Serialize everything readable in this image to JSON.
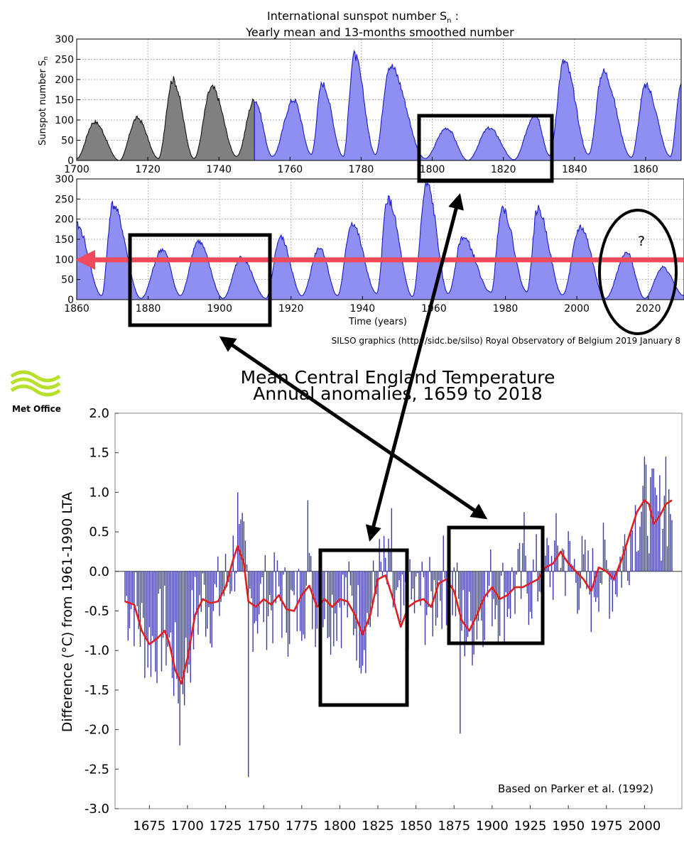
{
  "sunspot": {
    "title_line1": "International sunspot number S",
    "title_sub": "n",
    "title_colon": ":",
    "title_line2": "Yearly mean and 13-months smoothed number",
    "ylabel": "Sunspot number S",
    "ylabel_sub": "n",
    "xlabel": "Time (years)",
    "credit": "SILSO graphics (http://sidc.be/silso)  Royal Observatory of Belgium  2019 January 8",
    "question": "?",
    "fill_color": "#8f8ff2",
    "line_color": "#1a1ac8",
    "early_fill": "#808080"
  },
  "cet": {
    "title_line1": "Mean Central England Temperature",
    "title_line2": "Annual anomalies, 1659 to 2018",
    "ylabel": "Difference (°C) from 1961-1990 LTA",
    "citation": "Based on Parker et al. (1992)",
    "logo_text": "Met Office",
    "bar_color": "#3a3aa6",
    "smooth_color": "#e02020"
  },
  "overlay": {
    "arrow_color": "#000000",
    "red_arrow_color": "#f04a5a"
  },
  "chart_data": [
    {
      "type": "area",
      "title": "International sunspot number Sn : Yearly mean and 13-months smoothed number",
      "panel": "top",
      "xlim": [
        1700,
        1870
      ],
      "ylim": [
        0,
        300
      ],
      "ylabel": "Sunspot number Sn",
      "xticks": [
        1700,
        1720,
        1740,
        1760,
        1780,
        1800,
        1820,
        1840,
        1860
      ],
      "yticks": [
        0,
        50,
        100,
        150,
        200,
        250,
        300
      ],
      "peaks": [
        [
          1705,
          95
        ],
        [
          1717,
          105
        ],
        [
          1727,
          200
        ],
        [
          1738,
          180
        ],
        [
          1750,
          150
        ],
        [
          1761,
          150
        ],
        [
          1769,
          190
        ],
        [
          1778,
          260
        ],
        [
          1788,
          235
        ],
        [
          1804,
          80
        ],
        [
          1816,
          80
        ],
        [
          1829,
          115
        ],
        [
          1837,
          245
        ],
        [
          1848,
          220
        ],
        [
          1860,
          185
        ],
        [
          1870,
          190
        ]
      ],
      "minima": [
        [
          1700,
          5
        ],
        [
          1712,
          0
        ],
        [
          1723,
          5
        ],
        [
          1733,
          5
        ],
        [
          1745,
          10
        ],
        [
          1755,
          10
        ],
        [
          1766,
          15
        ],
        [
          1775,
          10
        ],
        [
          1784,
          15
        ],
        [
          1798,
          5
        ],
        [
          1810,
          0
        ],
        [
          1823,
          2
        ],
        [
          1833,
          12
        ],
        [
          1844,
          15
        ],
        [
          1856,
          8
        ],
        [
          1867,
          10
        ]
      ]
    },
    {
      "type": "area",
      "panel": "bottom",
      "xlim": [
        1860,
        2030
      ],
      "ylim": [
        0,
        300
      ],
      "xlabel": "Time (years)",
      "xticks": [
        1860,
        1880,
        1900,
        1920,
        1940,
        1960,
        1980,
        2000,
        2020
      ],
      "yticks": [
        0,
        50,
        100,
        150,
        200,
        250,
        300
      ],
      "peaks": [
        [
          1860,
          185
        ],
        [
          1870,
          235
        ],
        [
          1884,
          125
        ],
        [
          1894,
          145
        ],
        [
          1906,
          105
        ],
        [
          1917,
          155
        ],
        [
          1928,
          130
        ],
        [
          1937,
          190
        ],
        [
          1947,
          250
        ],
        [
          1958,
          285
        ],
        [
          1968,
          155
        ],
        [
          1979,
          230
        ],
        [
          1989,
          225
        ],
        [
          2001,
          180
        ],
        [
          2014,
          115
        ],
        [
          2024,
          80
        ]
      ],
      "minima": [
        [
          1867,
          10
        ],
        [
          1878,
          3
        ],
        [
          1889,
          10
        ],
        [
          1901,
          3
        ],
        [
          1913,
          3
        ],
        [
          1923,
          10
        ],
        [
          1933,
          10
        ],
        [
          1944,
          15
        ],
        [
          1954,
          8
        ],
        [
          1964,
          15
        ],
        [
          1976,
          18
        ],
        [
          1986,
          20
        ],
        [
          1996,
          12
        ],
        [
          2008,
          3
        ],
        [
          2019,
          3
        ],
        [
          2030,
          10
        ]
      ]
    },
    {
      "type": "bar",
      "title": "Mean Central England Temperature Annual anomalies, 1659 to 2018",
      "xlim": [
        1659,
        2018
      ],
      "ylim": [
        -3.0,
        2.0
      ],
      "ylabel": "Difference (°C) from 1961-1990 LTA",
      "xticks": [
        1675,
        1700,
        1725,
        1750,
        1775,
        1800,
        1825,
        1850,
        1875,
        1900,
        1925,
        1950,
        1975,
        2000
      ],
      "yticks": [
        -3.0,
        -2.5,
        -2.0,
        -1.5,
        -1.0,
        -0.5,
        0.0,
        0.5,
        1.0,
        1.5,
        2.0
      ],
      "annual_extremes": [
        [
          1695,
          -2.2
        ],
        [
          1740,
          -2.65
        ],
        [
          1879,
          -2.05
        ],
        [
          1733,
          1.0
        ],
        [
          1779,
          0.9
        ],
        [
          1834,
          0.8
        ],
        [
          1921,
          0.75
        ],
        [
          2014,
          1.45
        ],
        [
          2006,
          1.3
        ]
      ],
      "smoothed": [
        [
          1659,
          -0.38
        ],
        [
          1665,
          -0.42
        ],
        [
          1670,
          -0.75
        ],
        [
          1675,
          -0.92
        ],
        [
          1680,
          -0.85
        ],
        [
          1685,
          -0.75
        ],
        [
          1688,
          -0.9
        ],
        [
          1692,
          -1.25
        ],
        [
          1696,
          -1.42
        ],
        [
          1700,
          -1.1
        ],
        [
          1705,
          -0.55
        ],
        [
          1710,
          -0.35
        ],
        [
          1715,
          -0.4
        ],
        [
          1720,
          -0.38
        ],
        [
          1725,
          -0.2
        ],
        [
          1730,
          0.15
        ],
        [
          1733,
          0.32
        ],
        [
          1737,
          0.1
        ],
        [
          1740,
          -0.38
        ],
        [
          1745,
          -0.45
        ],
        [
          1750,
          -0.35
        ],
        [
          1755,
          -0.42
        ],
        [
          1760,
          -0.3
        ],
        [
          1765,
          -0.48
        ],
        [
          1770,
          -0.5
        ],
        [
          1775,
          -0.3
        ],
        [
          1780,
          -0.18
        ],
        [
          1785,
          -0.45
        ],
        [
          1790,
          -0.35
        ],
        [
          1795,
          -0.45
        ],
        [
          1800,
          -0.35
        ],
        [
          1805,
          -0.38
        ],
        [
          1810,
          -0.55
        ],
        [
          1815,
          -0.8
        ],
        [
          1820,
          -0.55
        ],
        [
          1825,
          -0.1
        ],
        [
          1830,
          -0.05
        ],
        [
          1835,
          -0.35
        ],
        [
          1840,
          -0.7
        ],
        [
          1845,
          -0.45
        ],
        [
          1850,
          -0.38
        ],
        [
          1855,
          -0.35
        ],
        [
          1860,
          -0.45
        ],
        [
          1865,
          -0.15
        ],
        [
          1870,
          -0.1
        ],
        [
          1875,
          -0.25
        ],
        [
          1880,
          -0.62
        ],
        [
          1885,
          -0.75
        ],
        [
          1890,
          -0.55
        ],
        [
          1895,
          -0.32
        ],
        [
          1900,
          -0.2
        ],
        [
          1905,
          -0.35
        ],
        [
          1910,
          -0.3
        ],
        [
          1915,
          -0.2
        ],
        [
          1920,
          -0.2
        ],
        [
          1925,
          -0.15
        ],
        [
          1930,
          -0.1
        ],
        [
          1935,
          0.05
        ],
        [
          1940,
          0.1
        ],
        [
          1945,
          0.25
        ],
        [
          1950,
          0.1
        ],
        [
          1955,
          0.0
        ],
        [
          1960,
          -0.1
        ],
        [
          1965,
          -0.25
        ],
        [
          1970,
          0.05
        ],
        [
          1975,
          0.0
        ],
        [
          1980,
          -0.1
        ],
        [
          1985,
          0.15
        ],
        [
          1990,
          0.45
        ],
        [
          1995,
          0.75
        ],
        [
          2000,
          0.9
        ],
        [
          2003,
          0.85
        ],
        [
          2006,
          0.6
        ],
        [
          2010,
          0.7
        ],
        [
          2014,
          0.85
        ],
        [
          2018,
          0.9
        ]
      ]
    }
  ]
}
